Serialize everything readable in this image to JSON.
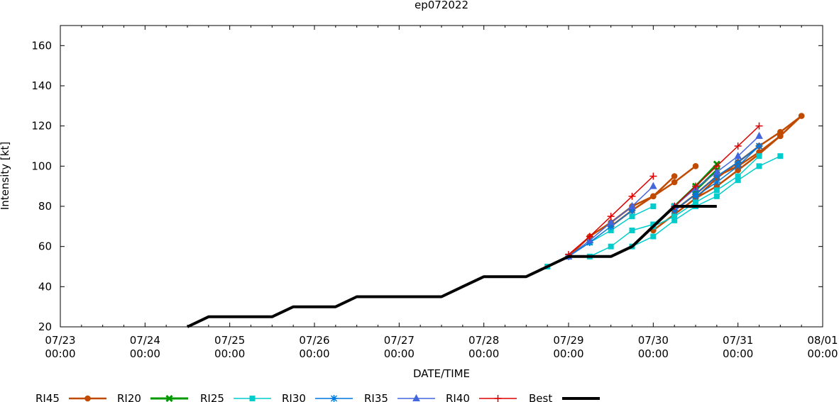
{
  "chart_data": {
    "type": "line",
    "title": "ep072022",
    "xlabel": "DATE/TIME",
    "ylabel": "Intensity [kt]",
    "x_unit": "hours since 07/23 00:00",
    "xlim": [
      0,
      216
    ],
    "ylim": [
      20,
      170
    ],
    "yticks": [
      20,
      40,
      60,
      80,
      100,
      120,
      140,
      160
    ],
    "xticks": [
      {
        "value": 0,
        "line1": "07/23",
        "line2": "00:00"
      },
      {
        "value": 24,
        "line1": "07/24",
        "line2": "00:00"
      },
      {
        "value": 48,
        "line1": "07/25",
        "line2": "00:00"
      },
      {
        "value": 72,
        "line1": "07/26",
        "line2": "00:00"
      },
      {
        "value": 96,
        "line1": "07/27",
        "line2": "00:00"
      },
      {
        "value": 120,
        "line1": "07/28",
        "line2": "00:00"
      },
      {
        "value": 144,
        "line1": "07/29",
        "line2": "00:00"
      },
      {
        "value": 168,
        "line1": "07/30",
        "line2": "00:00"
      },
      {
        "value": 192,
        "line1": "07/31",
        "line2": "00:00"
      },
      {
        "value": 216,
        "line1": "08/01",
        "line2": "00:00"
      }
    ],
    "legend_position": "bottom",
    "series": [
      {
        "name": "RI45",
        "color": "#c04a00",
        "marker": "circle",
        "width": 2.5,
        "segments": [
          [
            [
              144,
              55
            ],
            [
              150,
              65
            ],
            [
              156,
              72
            ],
            [
              162,
              80
            ],
            [
              168,
              85
            ],
            [
              174,
              95
            ]
          ],
          [
            [
              156,
              70
            ],
            [
              162,
              78
            ],
            [
              168,
              85
            ],
            [
              174,
              92
            ],
            [
              180,
              100
            ]
          ],
          [
            [
              174,
              78
            ],
            [
              180,
              86
            ],
            [
              186,
              95
            ],
            [
              192,
              100
            ],
            [
              198,
              107
            ],
            [
              204,
              115
            ],
            [
              210,
              125
            ]
          ],
          [
            [
              168,
              68
            ],
            [
              174,
              76
            ],
            [
              180,
              84
            ],
            [
              186,
              90
            ],
            [
              192,
              98
            ],
            [
              198,
              106
            ],
            [
              204,
              115
            ]
          ],
          [
            [
              180,
              84
            ],
            [
              186,
              94
            ],
            [
              192,
              102
            ],
            [
              198,
              110
            ],
            [
              204,
              117
            ],
            [
              210,
              125
            ]
          ]
        ]
      },
      {
        "name": "RI20",
        "color": "#009900",
        "marker": "x",
        "width": 3,
        "segments": [
          [
            [
              174,
              80
            ],
            [
              180,
              90
            ],
            [
              186,
              101
            ]
          ],
          [
            [
              180,
              88
            ],
            [
              186,
              98
            ]
          ]
        ]
      },
      {
        "name": "RI25",
        "color": "#00cccc",
        "marker": "square",
        "width": 1.5,
        "segments": [
          [
            [
              138,
              50
            ],
            [
              144,
              55
            ],
            [
              150,
              62
            ],
            [
              156,
              68
            ],
            [
              162,
              75
            ],
            [
              168,
              80
            ]
          ],
          [
            [
              150,
              55
            ],
            [
              156,
              60
            ],
            [
              162,
              68
            ],
            [
              168,
              71
            ],
            [
              174,
              80
            ]
          ],
          [
            [
              162,
              60
            ],
            [
              168,
              65
            ],
            [
              174,
              73
            ],
            [
              180,
              80
            ],
            [
              186,
              85
            ],
            [
              192,
              93
            ],
            [
              198,
              100
            ],
            [
              204,
              105
            ]
          ],
          [
            [
              168,
              70
            ],
            [
              174,
              75
            ],
            [
              180,
              82
            ],
            [
              186,
              88
            ],
            [
              192,
              95
            ],
            [
              198,
              105
            ]
          ]
        ]
      },
      {
        "name": "RI30",
        "color": "#0077dd",
        "marker": "star",
        "width": 1.5,
        "segments": [
          [
            [
              144,
              55
            ],
            [
              150,
              62
            ],
            [
              156,
              70
            ],
            [
              162,
              78
            ]
          ],
          [
            [
              174,
              78
            ],
            [
              180,
              86
            ],
            [
              186,
              95
            ],
            [
              192,
              102
            ],
            [
              198,
              110
            ]
          ],
          [
            [
              180,
              85
            ],
            [
              186,
              92
            ],
            [
              192,
              100
            ],
            [
              198,
              110
            ]
          ]
        ]
      },
      {
        "name": "RI35",
        "color": "#4466dd",
        "marker": "triangle",
        "width": 1.5,
        "segments": [
          [
            [
              144,
              55
            ],
            [
              150,
              63
            ],
            [
              156,
              72
            ],
            [
              162,
              80
            ],
            [
              168,
              90
            ]
          ],
          [
            [
              174,
              80
            ],
            [
              180,
              89
            ],
            [
              186,
              97
            ],
            [
              192,
              105
            ],
            [
              198,
              115
            ]
          ]
        ]
      },
      {
        "name": "RI40",
        "color": "#dd0000",
        "marker": "plus",
        "width": 1.5,
        "segments": [
          [
            [
              144,
              56
            ],
            [
              150,
              65
            ],
            [
              156,
              75
            ],
            [
              162,
              85
            ],
            [
              168,
              95
            ]
          ],
          [
            [
              174,
              80
            ],
            [
              180,
              90
            ],
            [
              186,
              100
            ],
            [
              192,
              110
            ],
            [
              198,
              120
            ]
          ]
        ]
      },
      {
        "name": "Best",
        "color": "#000000",
        "marker": "none",
        "width": 4,
        "segments": [
          [
            [
              36,
              20
            ],
            [
              42,
              25
            ],
            [
              48,
              25
            ],
            [
              54,
              25
            ],
            [
              60,
              25
            ],
            [
              66,
              30
            ],
            [
              72,
              30
            ],
            [
              78,
              30
            ],
            [
              84,
              35
            ],
            [
              90,
              35
            ],
            [
              96,
              35
            ],
            [
              102,
              35
            ],
            [
              108,
              35
            ],
            [
              114,
              40
            ],
            [
              120,
              45
            ],
            [
              126,
              45
            ],
            [
              132,
              45
            ],
            [
              138,
              50
            ],
            [
              144,
              55
            ],
            [
              150,
              55
            ],
            [
              156,
              55
            ],
            [
              162,
              60
            ],
            [
              168,
              70
            ],
            [
              174,
              80
            ],
            [
              180,
              80
            ],
            [
              186,
              80
            ]
          ]
        ]
      }
    ]
  }
}
